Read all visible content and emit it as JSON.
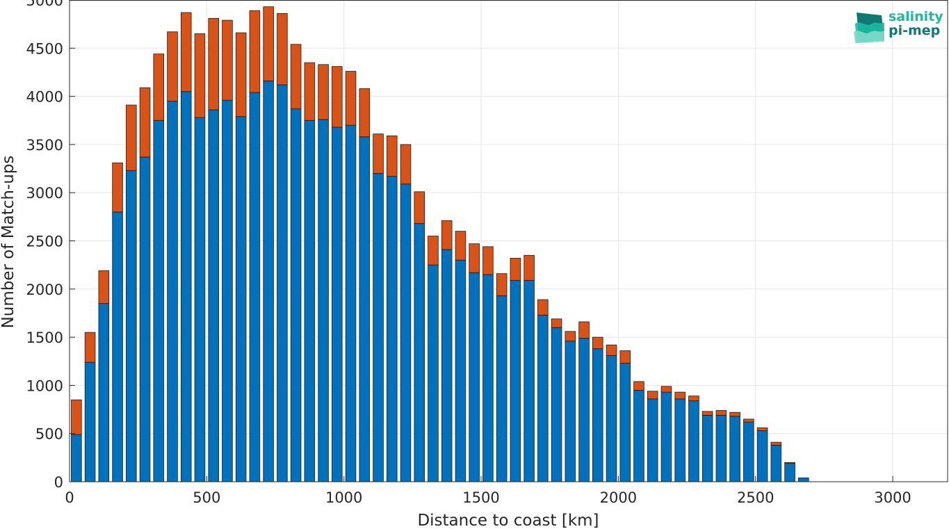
{
  "chart_data": {
    "type": "bar",
    "stacked": true,
    "title": "",
    "xlabel": "Distance to coast [km]",
    "ylabel": "Number of Match-ups",
    "xlim": [
      0,
      3200
    ],
    "ylim": [
      0,
      5000
    ],
    "xticks": [
      0,
      500,
      1000,
      1500,
      2000,
      2500,
      3000
    ],
    "yticks": [
      0,
      500,
      1000,
      1500,
      2000,
      2500,
      3000,
      3500,
      4000,
      4500,
      5000
    ],
    "grid": true,
    "bin_width": 50,
    "x": [
      25,
      75,
      125,
      175,
      225,
      275,
      325,
      375,
      425,
      475,
      525,
      575,
      625,
      675,
      725,
      775,
      825,
      875,
      925,
      975,
      1025,
      1075,
      1125,
      1175,
      1225,
      1275,
      1325,
      1375,
      1425,
      1475,
      1525,
      1575,
      1625,
      1675,
      1725,
      1775,
      1825,
      1875,
      1925,
      1975,
      2025,
      2075,
      2125,
      2175,
      2225,
      2275,
      2325,
      2375,
      2425,
      2475,
      2525,
      2575,
      2625,
      2675
    ],
    "series": [
      {
        "color": "#0072bd",
        "values": [
          490,
          1240,
          1850,
          2800,
          3230,
          3370,
          3750,
          3950,
          4050,
          3780,
          3860,
          3960,
          3790,
          4040,
          4160,
          4120,
          3870,
          3750,
          3760,
          3680,
          3700,
          3580,
          3200,
          3170,
          3090,
          2680,
          2250,
          2410,
          2300,
          2170,
          2150,
          1930,
          2090,
          2090,
          1730,
          1600,
          1460,
          1490,
          1380,
          1310,
          1230,
          950,
          860,
          930,
          860,
          840,
          690,
          690,
          680,
          620,
          530,
          380,
          190,
          40
        ]
      },
      {
        "color": "#d95319",
        "values": [
          360,
          310,
          340,
          510,
          680,
          720,
          690,
          720,
          820,
          870,
          950,
          830,
          870,
          850,
          770,
          740,
          670,
          600,
          570,
          630,
          560,
          500,
          410,
          420,
          410,
          330,
          300,
          300,
          300,
          300,
          290,
          230,
          230,
          260,
          160,
          90,
          100,
          170,
          120,
          110,
          130,
          90,
          80,
          60,
          70,
          50,
          40,
          50,
          40,
          30,
          30,
          30,
          10,
          0
        ]
      }
    ]
  },
  "logo": {
    "line1": "salinity",
    "line2": "pi-mep"
  }
}
